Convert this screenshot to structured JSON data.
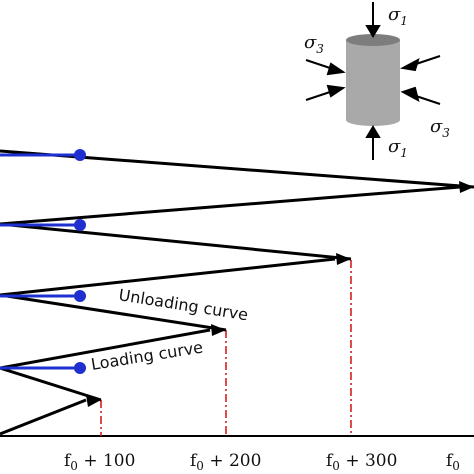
{
  "annotations": {
    "unloading_curve": "Unloading curve",
    "loading_curve": "Loading curve"
  },
  "axis": {
    "ticks": [
      {
        "base": "f",
        "sub": "0",
        "rest": " + 100"
      },
      {
        "base": "f",
        "sub": "0",
        "rest": " + 200"
      },
      {
        "base": "f",
        "sub": "0",
        "rest": " + 300"
      },
      {
        "base": "f",
        "sub": "0",
        "rest": ""
      }
    ]
  },
  "specimen": {
    "axial_stress": {
      "symbol": "σ",
      "sub": "1"
    },
    "confining_stress": {
      "symbol": "σ",
      "sub": "3"
    }
  },
  "colors": {
    "path": "#000000",
    "residual": "#1f2fd0",
    "guide": "#d42020",
    "specimen": "#a9a9a9"
  }
}
